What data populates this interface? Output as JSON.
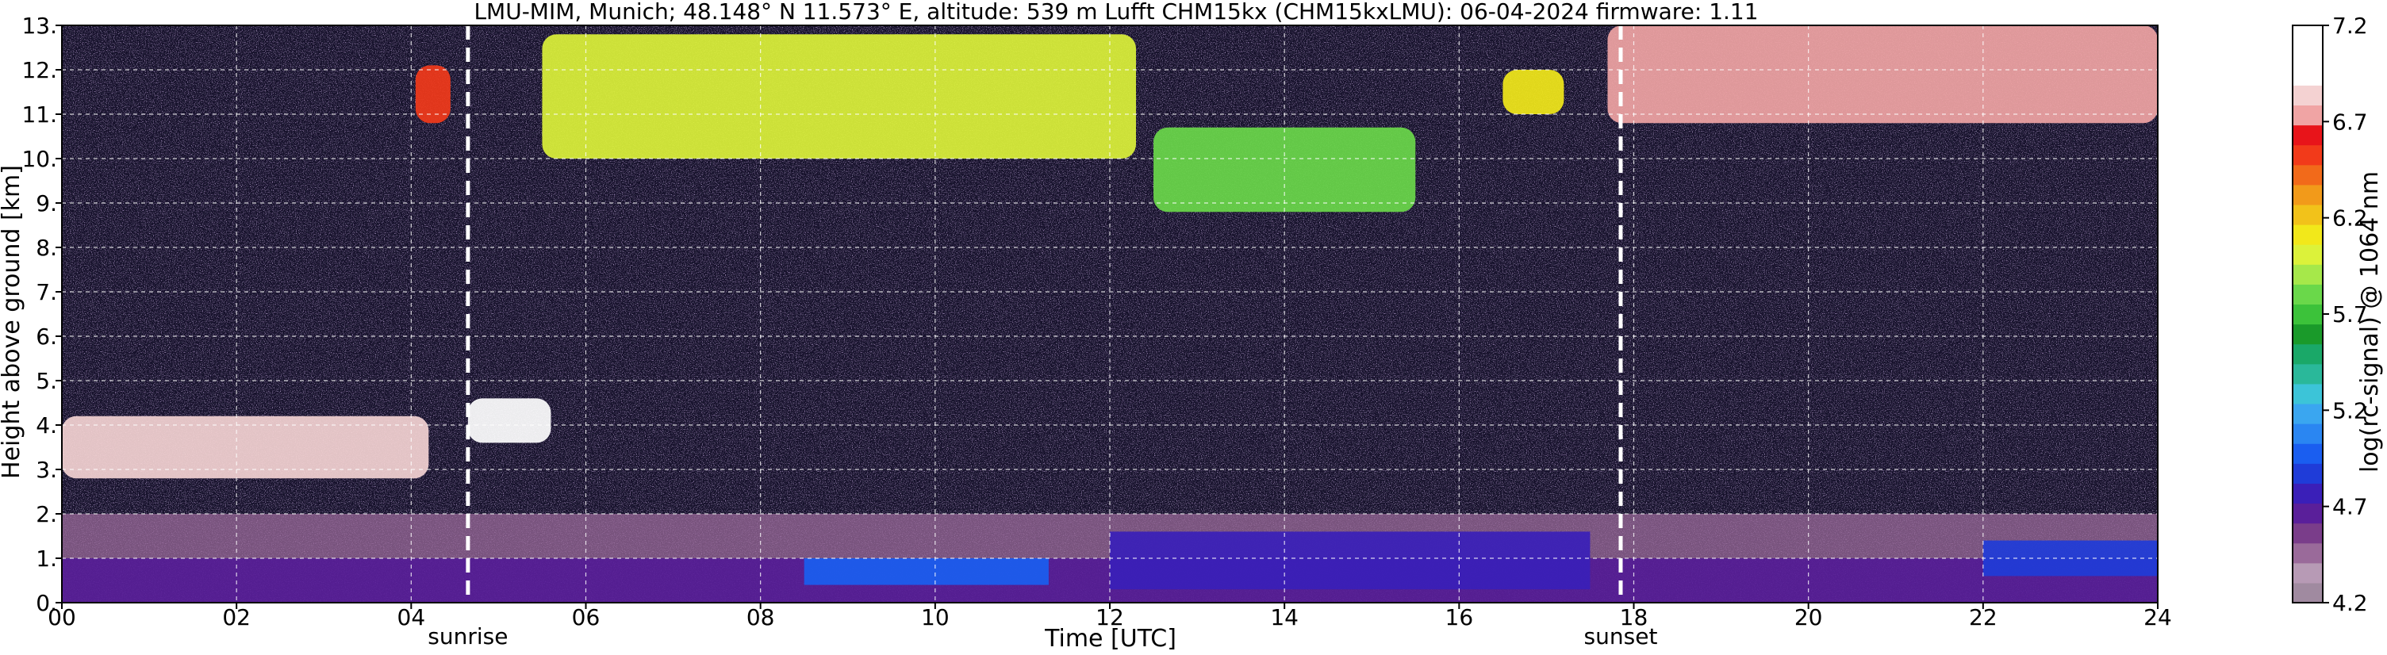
{
  "chart_data": {
    "type": "heatmap",
    "title": "LMU-MIM, Munich; 48.148° N 11.573° E, altitude: 539 m    Lufft CHM15kx (CHM15kxLMU): 06-04-2024    firmware: 1.11",
    "xlabel": "Time [UTC]",
    "ylabel": "Height above ground [km]",
    "xlim": [
      0,
      24
    ],
    "ylim": [
      0,
      13
    ],
    "x_ticks": [
      "00",
      "02",
      "04",
      "06",
      "08",
      "10",
      "12",
      "14",
      "16",
      "18",
      "20",
      "22",
      "24"
    ],
    "x_tick_values": [
      0,
      2,
      4,
      6,
      8,
      10,
      12,
      14,
      16,
      18,
      20,
      22,
      24
    ],
    "y_ticks": [
      "0.",
      "1.",
      "2.",
      "3.",
      "4.",
      "5.",
      "6.",
      "7.",
      "8.",
      "9.",
      "10.",
      "11.",
      "12.",
      "13."
    ],
    "y_tick_values": [
      0,
      1,
      2,
      3,
      4,
      5,
      6,
      7,
      8,
      9,
      10,
      11,
      12,
      13
    ],
    "grid": true,
    "annotations": [
      {
        "label": "sunrise",
        "x": 4.65
      },
      {
        "label": "sunset",
        "x": 17.85
      }
    ],
    "colorbar": {
      "label": "log(rc-signal) @ 1064 nm",
      "range": [
        4.2,
        7.2
      ],
      "ticks": [
        "4.2",
        "4.7",
        "5.2",
        "5.7",
        "6.2",
        "6.7",
        "7.2"
      ],
      "tick_values": [
        4.2,
        4.7,
        5.2,
        5.7,
        6.2,
        6.7,
        7.2
      ],
      "colors": [
        "#a08aa0",
        "#b79ab5",
        "#9a6a9a",
        "#7a3d8a",
        "#5a1f9a",
        "#3a1fb8",
        "#1f3cd8",
        "#1a5ef0",
        "#2a86f2",
        "#3aa6f0",
        "#3cc4d8",
        "#2ab89a",
        "#1aa868",
        "#1a9a2a",
        "#3cc23a",
        "#6ad84a",
        "#a6e84a",
        "#dcf23a",
        "#f2e81a",
        "#f2c21a",
        "#f29a1a",
        "#f26a1a",
        "#f23a1a",
        "#e8141a",
        "#f0a4a4",
        "#f4d2d2",
        "#ffffff",
        "#ffffff",
        "#ffffff"
      ]
    },
    "features": [
      {
        "kind": "boundary_layer",
        "x": [
          0,
          24
        ],
        "y": [
          0,
          1.0
        ],
        "level": 4.65
      },
      {
        "kind": "aerosol_layer",
        "x": [
          0,
          24
        ],
        "y": [
          1.0,
          2.0
        ],
        "level": 4.5
      },
      {
        "kind": "cloud",
        "x": [
          0,
          4.2
        ],
        "y": [
          2.8,
          4.2
        ],
        "level": 6.8
      },
      {
        "kind": "cloud",
        "x": [
          4.65,
          5.6
        ],
        "y": [
          3.6,
          4.6
        ],
        "level": 6.9
      },
      {
        "kind": "cloud",
        "x": [
          4.05,
          4.45
        ],
        "y": [
          10.8,
          12.1
        ],
        "level": 6.5
      },
      {
        "kind": "cirrus",
        "x": [
          5.5,
          12.3
        ],
        "y": [
          10.0,
          12.8
        ],
        "level": 6.0
      },
      {
        "kind": "cirrus",
        "x": [
          12.5,
          15.5
        ],
        "y": [
          8.8,
          10.7
        ],
        "level": 5.8
      },
      {
        "kind": "cirrus",
        "x": [
          16.5,
          17.2
        ],
        "y": [
          11.0,
          12.0
        ],
        "level": 6.1
      },
      {
        "kind": "cirrus",
        "x": [
          17.7,
          24
        ],
        "y": [
          10.8,
          13.0
        ],
        "level": 6.7
      },
      {
        "kind": "aerosol_patch",
        "x": [
          8.5,
          11.3
        ],
        "y": [
          0.4,
          1.0
        ],
        "level": 5.0
      },
      {
        "kind": "aerosol_patch",
        "x": [
          12.0,
          17.5
        ],
        "y": [
          0.3,
          1.6
        ],
        "level": 4.8
      },
      {
        "kind": "aerosol_patch",
        "x": [
          22.0,
          24
        ],
        "y": [
          0.6,
          1.4
        ],
        "level": 4.85
      }
    ]
  }
}
